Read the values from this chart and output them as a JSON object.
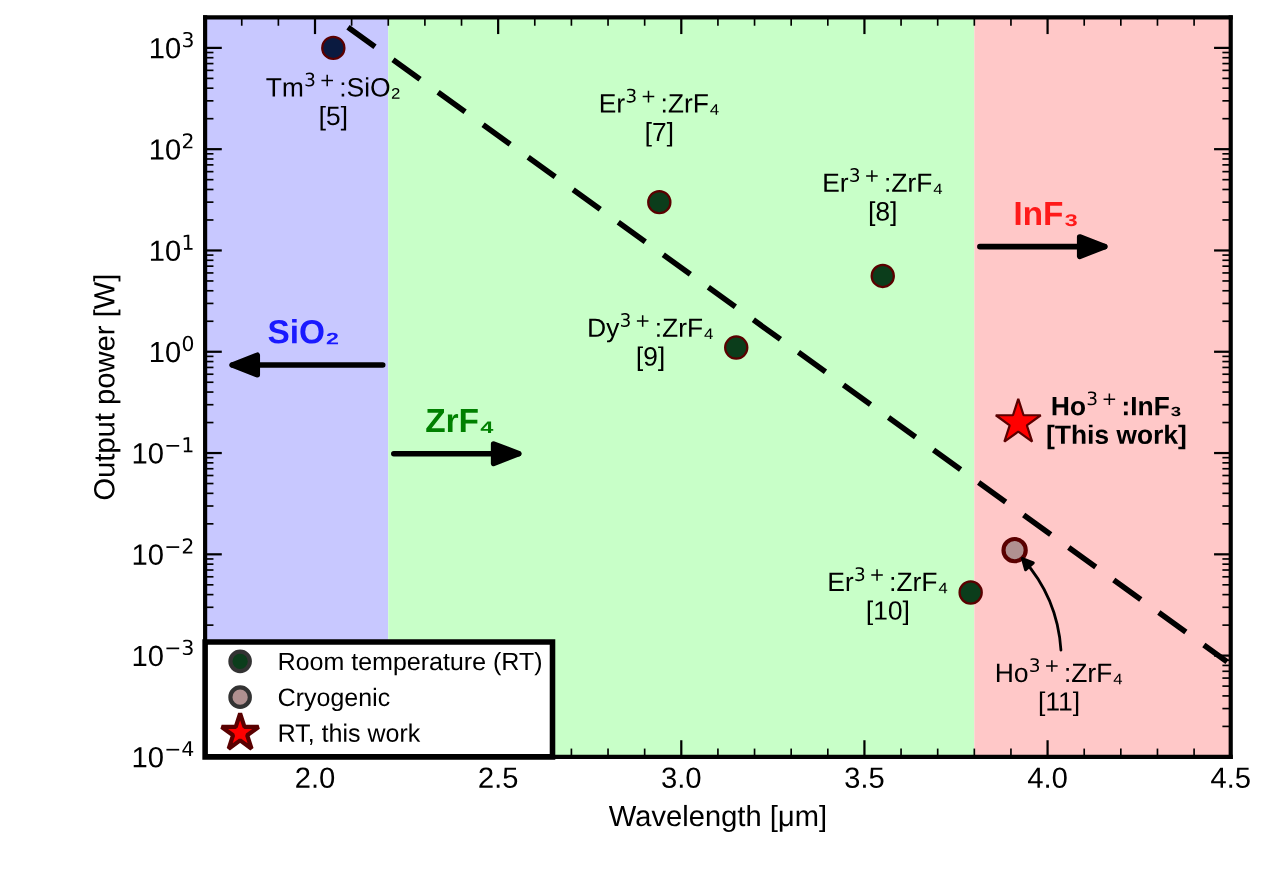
{
  "chart_data": {
    "type": "scatter",
    "xlabel": "Wavelength [μm]",
    "ylabel": "Output power [W]",
    "xlim": [
      1.7,
      4.5
    ],
    "ylim": [
      0.0001,
      2000
    ],
    "log": "y",
    "xticks": [
      {
        "value": 2,
        "label": "2.0"
      },
      2.5,
      {
        "value": 3,
        "label": "3.0"
      },
      3.5,
      {
        "value": 4,
        "label": "4.0"
      },
      4.5
    ],
    "yticks": [
      {
        "value": 0.0001,
        "label": "10$^{−4}$"
      },
      {
        "value": 0.001,
        "label": "10$^{−3}$"
      },
      {
        "value": 0.01,
        "label": "10$^{−2}$"
      },
      {
        "value": 0.1,
        "label": "10$^{−1}$"
      },
      {
        "value": 1,
        "label": "10$^{0}$"
      },
      {
        "value": 10,
        "label": "10$^{1}$"
      },
      {
        "value": 100,
        "label": "10$^{2}$"
      },
      {
        "value": 1000,
        "label": "10$^{3}$"
      }
    ],
    "grid": false,
    "legend": "bottom left",
    "bands": [
      {
        "axis": "x",
        "from": 1.7,
        "to": 2.2,
        "label": "SiO₂",
        "color": "#c8c8ff"
      },
      {
        "axis": "x",
        "from": 2.2,
        "to": 3.8,
        "label": "ZrF₄",
        "color": "#c8ffc8"
      },
      {
        "axis": "x",
        "from": 3.8,
        "to": 4.5,
        "label": "InF₃",
        "color": "#ffc8c8"
      }
    ],
    "series": [
      {
        "name": "Room temperature (RT)",
        "marker": "circle",
        "color": "#0b3d1b",
        "colors": [
          "#0a1a40",
          "#0b3d1b",
          "#0b3d1b",
          "#0b3d1b",
          "#0b3d1b"
        ],
        "x": [
          2.05,
          2.94,
          3.15,
          3.55,
          3.79
        ],
        "values": [
          1000,
          30,
          1.1,
          5.6,
          0.0042
        ]
      },
      {
        "name": "Cryogenic",
        "marker": "circle",
        "color": "#b09090",
        "x": [
          3.91
        ],
        "values": [
          0.011
        ]
      },
      {
        "name": "RT, this work",
        "marker": "star",
        "color": "#ff0000",
        "x": [
          3.92
        ],
        "values": [
          0.2
        ]
      },
      {
        "type": "line",
        "line_style": "dashed",
        "color": "#000000",
        "x": [
          2.09,
          4.49
        ],
        "values": [
          1600,
          0.00087
        ]
      }
    ],
    "annotations": [
      {
        "text": "Tm$^{3+}$:SiO₂\n[5]",
        "x": 2.05,
        "y": 1000
      },
      {
        "text": "Er$^{3+}$:ZrF₄\n[7]",
        "x": 2.94,
        "y": 30
      },
      {
        "text": "Dy$^{3+}$:ZrF₄\n[9]",
        "x": 3.15,
        "y": 1.1
      },
      {
        "text": "Er$^{3+}$:ZrF₄\n[8]",
        "x": 3.55,
        "y": 5.6
      },
      {
        "text": "Er$^{3+}$:ZrF₄\n[10]",
        "x": 3.79,
        "y": 0.0042
      },
      {
        "text": "Ho$^{3+}$:ZrF₄\n[11]",
        "x": 3.91,
        "y": 0.011
      },
      {
        "text": "Ho$^{3+}$:InF₃\n[This work]",
        "x": 3.92,
        "y": 0.2
      }
    ]
  }
}
